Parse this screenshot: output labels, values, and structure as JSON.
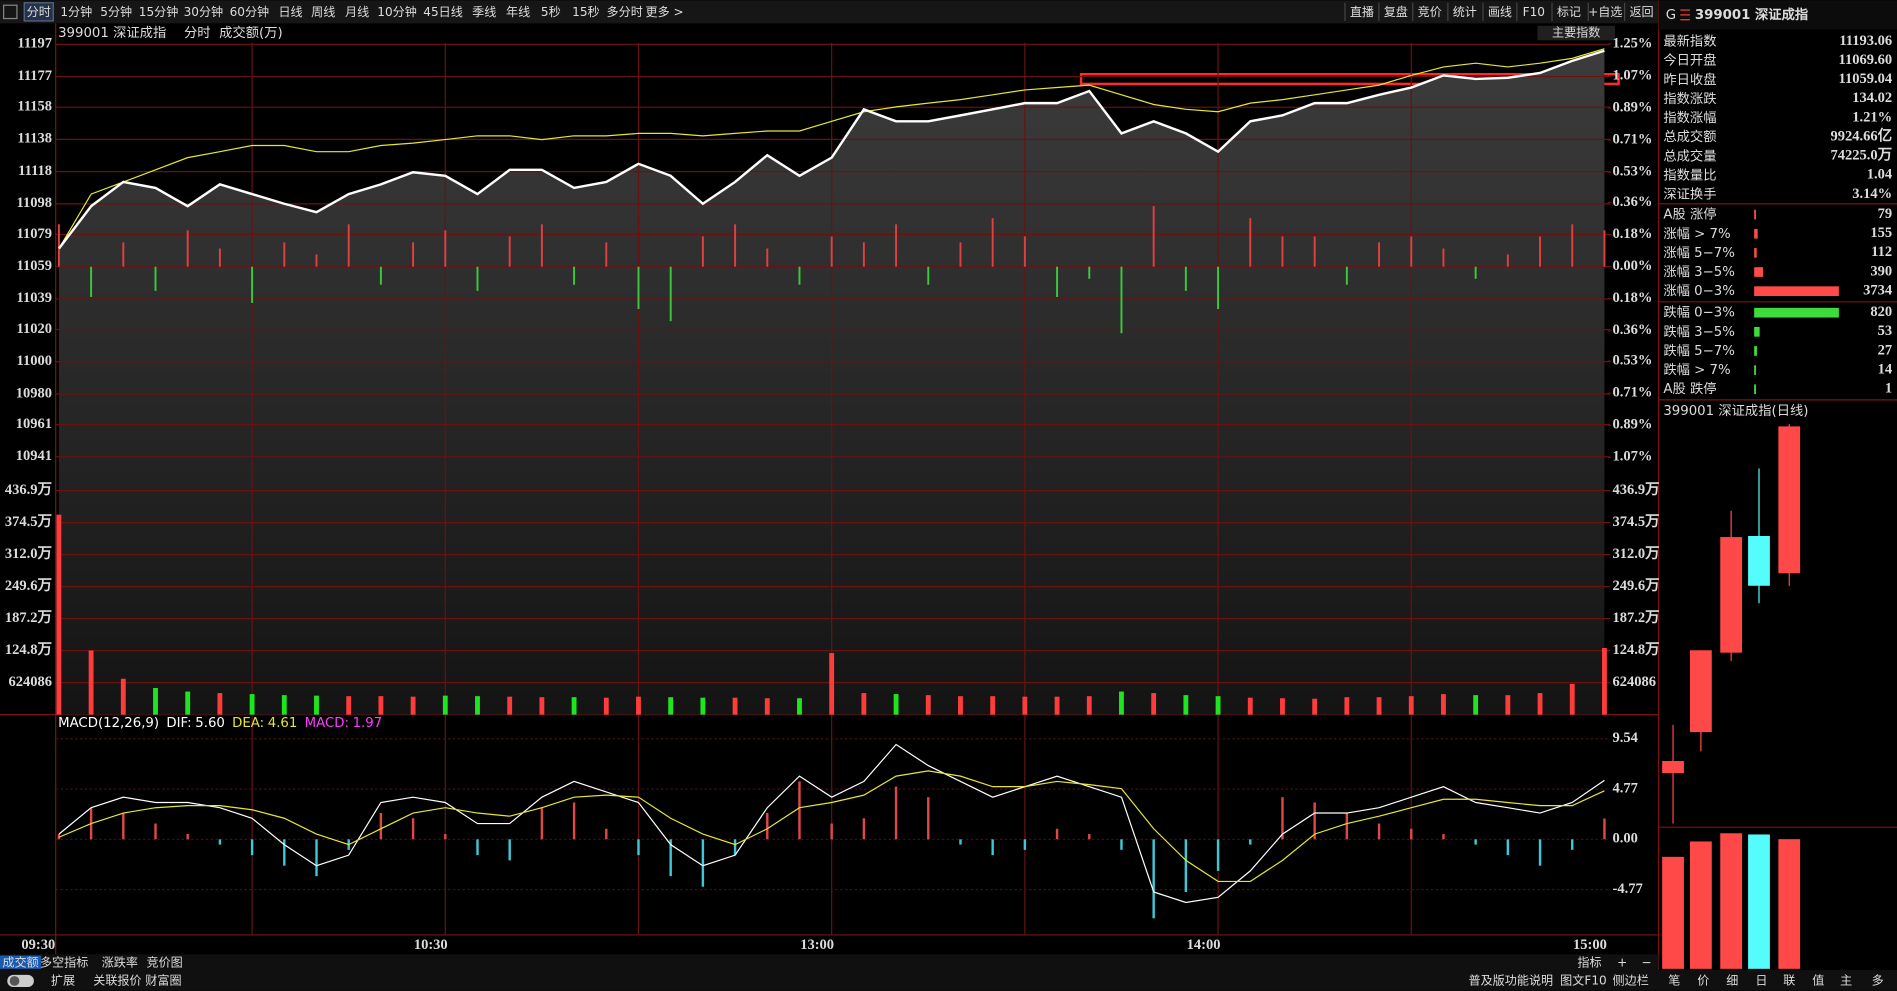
{
  "toolbar": {
    "tabs": [
      "分时",
      "1分钟",
      "5分钟",
      "15分钟",
      "30分钟",
      "60分钟",
      "日线",
      "周线",
      "月线",
      "10分钟",
      "45日线",
      "季线",
      "年线",
      "5秒",
      "15秒",
      "多分时",
      "更多 >"
    ],
    "buttons": [
      "直播",
      "复盘",
      "竞价",
      "统计",
      "画线",
      "F10",
      "标记",
      "+自选",
      "返回"
    ]
  },
  "chart_data": [
    {
      "type": "line",
      "title": "399001 深证成指",
      "subtitle": "分时",
      "indicator": "成交额(万)",
      "panel_label": "主要指数",
      "categories": [
        "09:30",
        null,
        null,
        null,
        null,
        null,
        null,
        null,
        null,
        null,
        null,
        null,
        "10:30",
        null,
        null,
        null,
        null,
        null,
        null,
        null,
        null,
        null,
        null,
        null,
        "13:00",
        null,
        null,
        null,
        null,
        null,
        null,
        null,
        null,
        null,
        null,
        null,
        "14:00",
        null,
        null,
        null,
        null,
        null,
        null,
        null,
        null,
        null,
        null,
        null,
        "15:00"
      ],
      "ylim": [
        10920,
        11198
      ],
      "yticks": [
        11197,
        11177,
        11158,
        11138,
        11118,
        11098,
        11079,
        11059,
        11039,
        11020,
        11000,
        10980,
        10961,
        10941
      ],
      "y2lim": [
        -1.257,
        1.257
      ],
      "y2ticks": [
        {
          "value": 1.25,
          "label": "1.25%"
        },
        {
          "value": 1.07,
          "label": "1.07%"
        },
        {
          "value": 0.89,
          "label": "0.89%"
        },
        {
          "value": 0.71,
          "label": "0.71%"
        },
        {
          "value": 0.53,
          "label": "0.53%"
        },
        {
          "value": 0.36,
          "label": "0.36%"
        },
        {
          "value": 0.18,
          "label": "0.18%"
        },
        {
          "value": 0,
          "label": "0.00%"
        },
        {
          "value": -0.18,
          "label": "0.18%"
        },
        {
          "value": -0.36,
          "label": "0.36%"
        },
        {
          "value": -0.53,
          "label": "0.53%"
        },
        {
          "value": -0.71,
          "label": "0.71%"
        },
        {
          "value": -0.89,
          "label": "0.89%"
        },
        {
          "value": -1.07,
          "label": "1.07%"
        }
      ],
      "grid": true,
      "series": [
        {
          "color": "#ffffff",
          "values": [
            11070.3,
            11096.6,
            11111.6,
            11107.9,
            11096.6,
            11110.1,
            11104.1,
            11098.1,
            11092.8,
            11104.1,
            11110.1,
            11117.6,
            11115.4,
            11104.1,
            11119.1,
            11119.1,
            11107.9,
            11111.6,
            11122.9,
            11115.4,
            11098.1,
            11111.6,
            11128.2,
            11115.4,
            11126.7,
            11156.7,
            11149.2,
            11149.2,
            11152.9,
            11156.7,
            11160.5,
            11160.5,
            11168.0,
            11141.7,
            11149.2,
            11141.7,
            11130.4,
            11149.2,
            11152.9,
            11160.5,
            11160.5,
            11165.7,
            11170.2,
            11177.7,
            11175.5,
            11176.2,
            11179.2,
            11186.7,
            11193.06
          ]
        },
        {
          "color": "#e6e632",
          "values": [
            11070.3,
            11104.1,
            11111.6,
            11119.1,
            11126.7,
            11130.4,
            11134.2,
            11134.2,
            11130.4,
            11130.4,
            11134.2,
            11135.7,
            11137.9,
            11140.2,
            11140.2,
            11137.9,
            11140.2,
            11140.2,
            11141.7,
            11141.7,
            11140.2,
            11141.7,
            11143.2,
            11143.2,
            11149.2,
            11155.2,
            11158.2,
            11160.5,
            11162.7,
            11165.7,
            11168.7,
            11170.2,
            11171.7,
            11165.7,
            11159.7,
            11156.7,
            11155.2,
            11160.5,
            11162.7,
            11165.7,
            11168.7,
            11171.7,
            11177.7,
            11183.0,
            11185.3,
            11183.0,
            11185.3,
            11188.3,
            11194.3
          ]
        }
      ],
      "bars": {
        "up_color": "#e04040",
        "down_color": "#3cc83c",
        "values": [
          11085.3,
          11040.2,
          11074.1,
          11044.0,
          11081.6,
          11070.3,
          11036.5,
          11074.1,
          11066.6,
          11085.3,
          11047.8,
          11074.1,
          11081.6,
          11044.0,
          11077.8,
          11085.3,
          11047.8,
          11074.1,
          11032.7,
          11025.2,
          11077.8,
          11085.3,
          11070.3,
          11047.8,
          11077.8,
          11074.1,
          11085.3,
          11047.8,
          11074.1,
          11089.1,
          11077.8,
          11040.2,
          11051.5,
          11017.7,
          11096.6,
          11044.0,
          11032.7,
          11089.1,
          11077.8,
          11077.8,
          11047.8,
          11074.1,
          11077.8,
          11070.3,
          11051.5,
          11066.6,
          11077.8,
          11085.3,
          11081.6
        ]
      }
    },
    {
      "type": "bar",
      "up_color": "#ff3c3c",
      "down_color": "#1ee61e",
      "ylim": [
        0,
        4368602
      ],
      "yticks": [
        {
          "value": 4368602,
          "label": "436.9万"
        },
        {
          "value": 3744516,
          "label": "374.5万"
        },
        {
          "value": 3120430,
          "label": "312.0万"
        },
        {
          "value": 2496344,
          "label": "249.6万"
        },
        {
          "value": 1872258,
          "label": "187.2万"
        },
        {
          "value": 1248172,
          "label": "124.8万"
        },
        624086
      ],
      "values": [
        3900000,
        1250000,
        700000,
        520000,
        450000,
        420000,
        400000,
        380000,
        370000,
        360000,
        360000,
        350000,
        370000,
        360000,
        350000,
        340000,
        340000,
        330000,
        350000,
        340000,
        330000,
        330000,
        320000,
        320000,
        1200000,
        420000,
        400000,
        380000,
        360000,
        360000,
        350000,
        350000,
        360000,
        450000,
        420000,
        380000,
        360000,
        330000,
        320000,
        310000,
        340000,
        340000,
        360000,
        400000,
        380000,
        380000,
        420000,
        600000,
        1300000
      ]
    },
    {
      "type": "macd",
      "title": "MACD(12,26,9)",
      "ylim": [
        -9.08,
        10.92
      ],
      "yticks": [
        9.54,
        4.77,
        {
          "value": 0,
          "label": "0.00"
        },
        -4.77
      ],
      "series": [
        {
          "name": "DIF:",
          "last_label": "5.60",
          "color": "#ffffff",
          "values": [
            0.5,
            3.0,
            4.0,
            3.5,
            3.5,
            3.0,
            2.0,
            -0.5,
            -2.5,
            -1.5,
            3.5,
            4.0,
            3.5,
            1.5,
            1.5,
            4.0,
            5.5,
            4.5,
            3.5,
            -0.5,
            -2.5,
            -1.5,
            3.0,
            6.0,
            4.0,
            5.5,
            9.0,
            7.0,
            5.5,
            4.0,
            5.0,
            6.0,
            5.0,
            4.0,
            -5.0,
            -6.0,
            -5.5,
            -3.0,
            0.5,
            2.5,
            2.5,
            3.0,
            4.0,
            5.0,
            3.5,
            3.0,
            2.5,
            3.5,
            5.6
          ]
        },
        {
          "name": "DEA:",
          "last_label": "4.61",
          "color": "#e6e632",
          "values": [
            0.2,
            1.5,
            2.5,
            3.0,
            3.2,
            3.2,
            2.8,
            2.0,
            0.5,
            -0.5,
            1.0,
            2.5,
            3.0,
            2.5,
            2.2,
            3.0,
            4.0,
            4.2,
            4.0,
            2.0,
            0.5,
            -0.5,
            1.0,
            3.0,
            3.5,
            4.2,
            6.0,
            6.5,
            6.0,
            5.0,
            5.0,
            5.5,
            5.2,
            4.8,
            1.0,
            -2.0,
            -4.0,
            -4.0,
            -2.0,
            0.5,
            1.5,
            2.2,
            3.0,
            3.8,
            3.8,
            3.5,
            3.2,
            3.2,
            4.61
          ]
        },
        {
          "name": "MACD:",
          "last_label": "1.97",
          "color": "#ff3cff",
          "up_color": "#e04848",
          "down_color": "#3cc8d8",
          "values": [
            0.5,
            3.0,
            2.5,
            1.5,
            0.5,
            -0.5,
            -1.5,
            -2.5,
            -3.5,
            -1.0,
            2.5,
            2.0,
            0.5,
            -1.5,
            -2.0,
            3.0,
            3.5,
            1.0,
            -1.5,
            -3.5,
            -4.5,
            -1.5,
            2.5,
            5.5,
            1.5,
            2.0,
            5.0,
            4.0,
            -0.5,
            -1.5,
            -1.0,
            1.0,
            0.5,
            -1.0,
            -7.5,
            -5.0,
            -3.0,
            -0.5,
            4.0,
            3.5,
            2.5,
            1.5,
            1.0,
            0.5,
            -0.5,
            -1.5,
            -2.5,
            -1.0,
            1.97
          ]
        }
      ]
    },
    {
      "type": "candlestick",
      "title": "399001 深证成指(日线)",
      "up_color": "#ff4848",
      "down_color": "#54fcfc",
      "open": [
        10901.6,
        10936.0,
        11002.8,
        11100.9,
        11069.6
      ],
      "high": [
        10942.1,
        11004.8,
        11122.2,
        11157.6,
        11195.0
      ],
      "low": [
        10859.1,
        10919.8,
        10995.7,
        11044.3,
        11059.0
      ],
      "close": [
        10911.7,
        11004.8,
        11100.0,
        11059.04,
        11193.06
      ],
      "volume": [
        64100,
        72900,
        77600,
        76900,
        74225.0
      ]
    }
  ],
  "quote": {
    "badge": "G",
    "title": "399001 深证成指",
    "rows": [
      {
        "label": "最新指数",
        "value": "11193.06",
        "color": "#ff4a4a"
      },
      {
        "label": "今日开盘",
        "value": "11069.60",
        "color": "#ff4a4a"
      },
      {
        "label": "昨日收盘",
        "value": "11059.04",
        "color": "#ffffff"
      },
      {
        "label": "指数涨跌",
        "value": "134.02",
        "color": "#ff4a4a"
      },
      {
        "label": "指数涨幅",
        "value": "1.21%",
        "color": "#ff4a4a"
      },
      {
        "label": "总成交额",
        "value": "9924.66亿",
        "color": "#ffcc33"
      },
      {
        "label": "总成交量",
        "value": "74225.0万",
        "color": "#ffcc33"
      },
      {
        "label": "指数量比",
        "value": "1.04",
        "color": "#ff4a4a"
      },
      {
        "label": "深证换手",
        "value": "3.14%",
        "color": "#ffffff"
      }
    ]
  },
  "breadth": {
    "up_color": "#ff4a4a",
    "down_color": "#3cdc3c",
    "up": [
      {
        "label": "A股 涨停",
        "value": 79
      },
      {
        "label": "涨幅 > 7%",
        "value": 155
      },
      {
        "label": "涨幅 5−7%",
        "value": 112
      },
      {
        "label": "涨幅 3−5%",
        "value": 390
      },
      {
        "label": "涨幅 0−3%",
        "value": 3734
      }
    ],
    "down": [
      {
        "label": "跌幅 0−3%",
        "value": 820
      },
      {
        "label": "跌幅 3−5%",
        "value": 53
      },
      {
        "label": "跌幅 5−7%",
        "value": 27
      },
      {
        "label": "跌幅 > 7%",
        "value": 14
      },
      {
        "label": "A股 跌停",
        "value": 1
      }
    ]
  },
  "bottom": {
    "tabs": [
      "成交额",
      "多空指标",
      "涨跌率",
      "竞价图"
    ],
    "tools": [
      "指标",
      "+",
      "−"
    ],
    "links": [
      "扩展",
      "关联报价",
      "财富圈"
    ],
    "right_links": [
      "普及版功能说明",
      "图文F10",
      "侧边栏"
    ],
    "side_tabs": [
      "笔",
      "价",
      "细",
      "日",
      "联",
      "值",
      "主",
      "多"
    ]
  }
}
